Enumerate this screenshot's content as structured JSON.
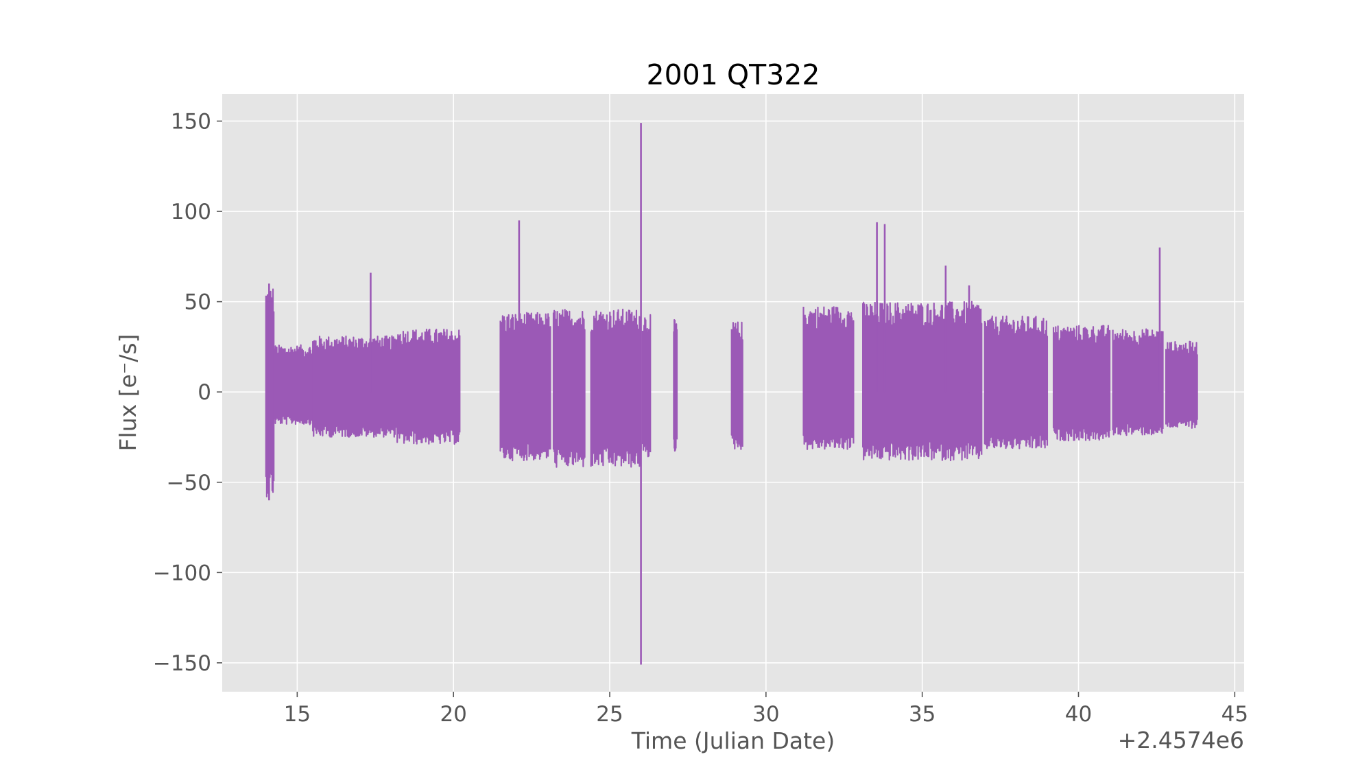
{
  "chart_data": {
    "type": "line",
    "title": "2001 QT322",
    "xlabel": "Time (Julian Date)",
    "ylabel": "Flux [e⁻/s]",
    "x_offset_label": "+2.4574e6",
    "xlim": [
      12.6,
      45.3
    ],
    "ylim": [
      -166,
      165
    ],
    "x_ticks": [
      15,
      20,
      25,
      30,
      35,
      40,
      45
    ],
    "x_tick_labels": [
      "15",
      "20",
      "25",
      "30",
      "35",
      "40",
      "45"
    ],
    "y_ticks": [
      -150,
      -100,
      -50,
      0,
      50,
      100,
      150
    ],
    "y_tick_labels": [
      "−150",
      "−100",
      "−50",
      "0",
      "50",
      "100",
      "150"
    ],
    "grid": true,
    "colors": {
      "series": "#9b59b6",
      "background": "#e5e5e5",
      "grid": "#ffffff",
      "text": "#555555",
      "title": "#000000"
    },
    "series": [
      {
        "segments": [
          {
            "x_start": 14.0,
            "x_end": 14.25,
            "y_min": -58,
            "y_max": 59
          },
          {
            "x_start": 14.25,
            "x_end": 15.5,
            "y_min": -18,
            "y_max": 26
          },
          {
            "x_start": 15.5,
            "x_end": 18.2,
            "y_min": -25,
            "y_max": 31
          },
          {
            "x_start": 18.2,
            "x_end": 20.2,
            "y_min": -29,
            "y_max": 35
          },
          {
            "x_start": 21.5,
            "x_end": 23.1,
            "y_min": -38,
            "y_max": 44
          },
          {
            "x_start": 23.2,
            "x_end": 24.2,
            "y_min": -42,
            "y_max": 46
          },
          {
            "x_start": 24.4,
            "x_end": 26.0,
            "y_min": -42,
            "y_max": 46
          },
          {
            "x_start": 26.05,
            "x_end": 26.3,
            "y_min": -37,
            "y_max": 44
          },
          {
            "x_start": 27.05,
            "x_end": 27.15,
            "y_min": -33,
            "y_max": 40
          },
          {
            "x_start": 28.9,
            "x_end": 29.25,
            "y_min": -32,
            "y_max": 39
          },
          {
            "x_start": 31.2,
            "x_end": 32.8,
            "y_min": -32,
            "y_max": 48
          },
          {
            "x_start": 33.1,
            "x_end": 36.9,
            "y_min": -38,
            "y_max": 50
          },
          {
            "x_start": 37.0,
            "x_end": 39.0,
            "y_min": -32,
            "y_max": 42
          },
          {
            "x_start": 39.2,
            "x_end": 41.0,
            "y_min": -27,
            "y_max": 37
          },
          {
            "x_start": 41.1,
            "x_end": 42.7,
            "y_min": -24,
            "y_max": 35
          },
          {
            "x_start": 42.8,
            "x_end": 43.8,
            "y_min": -20,
            "y_max": 28
          }
        ],
        "spikes": [
          {
            "x": 14.1,
            "y_min": -60,
            "y_max": 60
          },
          {
            "x": 17.35,
            "y_min": 0,
            "y_max": 66
          },
          {
            "x": 22.1,
            "y_min": 0,
            "y_max": 95
          },
          {
            "x": 26.0,
            "y_min": -151,
            "y_max": 149
          },
          {
            "x": 33.55,
            "y_min": 0,
            "y_max": 94
          },
          {
            "x": 33.8,
            "y_min": 0,
            "y_max": 93
          },
          {
            "x": 35.75,
            "y_min": 0,
            "y_max": 70
          },
          {
            "x": 36.5,
            "y_min": 0,
            "y_max": 59
          },
          {
            "x": 42.6,
            "y_min": 0,
            "y_max": 80
          }
        ]
      }
    ]
  }
}
